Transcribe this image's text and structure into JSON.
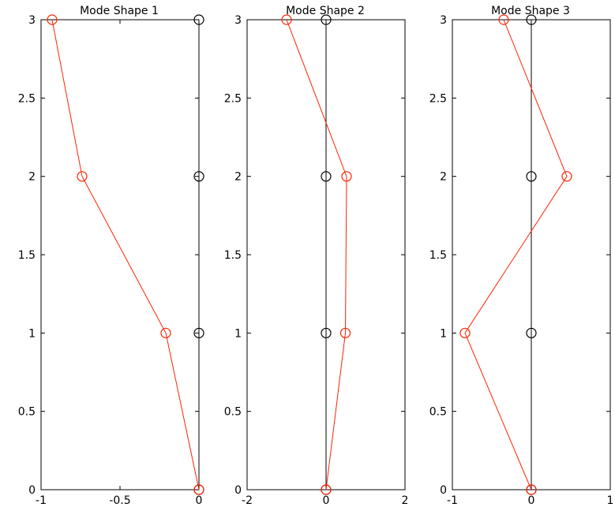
{
  "chart_data": [
    {
      "type": "line",
      "title": "Mode Shape 1",
      "xlim": [
        -1,
        0
      ],
      "ylim": [
        0,
        3
      ],
      "xticks": [
        -1,
        -0.5,
        0
      ],
      "xtick_labels": [
        "-1",
        "-0.5",
        "0"
      ],
      "yticks": [
        0,
        0.5,
        1,
        1.5,
        2,
        2.5,
        3
      ],
      "ytick_labels": [
        "0",
        "0.5",
        "1",
        "1.5",
        "2",
        "2.5",
        "3"
      ],
      "grid": false,
      "series": [
        {
          "color": "#000000",
          "marker": "circle",
          "x": [
            0,
            0,
            0,
            0
          ],
          "y": [
            0,
            1,
            2,
            3
          ]
        },
        {
          "color": "#ff2200",
          "marker": "circle",
          "x": [
            0,
            -0.21,
            -0.74,
            -0.93
          ],
          "y": [
            0,
            1,
            2,
            3
          ]
        }
      ]
    },
    {
      "type": "line",
      "title": "Mode Shape 2",
      "xlim": [
        -2,
        2
      ],
      "ylim": [
        0,
        3
      ],
      "xticks": [
        -2,
        0,
        2
      ],
      "xtick_labels": [
        "-2",
        "0",
        "2"
      ],
      "yticks": [
        0,
        0.5,
        1,
        1.5,
        2,
        2.5,
        3
      ],
      "ytick_labels": [
        "0",
        "0.5",
        "1",
        "1.5",
        "2",
        "2.5",
        "3"
      ],
      "grid": false,
      "series": [
        {
          "color": "#000000",
          "marker": "circle",
          "x": [
            0,
            0,
            0,
            0
          ],
          "y": [
            0,
            1,
            2,
            3
          ]
        },
        {
          "color": "#ff2200",
          "marker": "circle",
          "x": [
            0,
            0.49,
            0.52,
            -1
          ],
          "y": [
            0,
            1,
            2,
            3
          ]
        }
      ]
    },
    {
      "type": "line",
      "title": "Mode Shape 3",
      "xlim": [
        -1,
        1
      ],
      "ylim": [
        0,
        3
      ],
      "xticks": [
        -1,
        0,
        1
      ],
      "xtick_labels": [
        "-1",
        "0",
        "1"
      ],
      "yticks": [
        0,
        0.5,
        1,
        1.5,
        2,
        2.5,
        3
      ],
      "ytick_labels": [
        "0",
        "0.5",
        "1",
        "1.5",
        "2",
        "2.5",
        "3"
      ],
      "grid": false,
      "series": [
        {
          "color": "#000000",
          "marker": "circle",
          "x": [
            0,
            0,
            0,
            0
          ],
          "y": [
            0,
            1,
            2,
            3
          ]
        },
        {
          "color": "#ff2200",
          "marker": "circle",
          "x": [
            0,
            -0.84,
            0.45,
            -0.35
          ],
          "y": [
            0,
            1,
            2,
            3
          ]
        }
      ]
    }
  ]
}
